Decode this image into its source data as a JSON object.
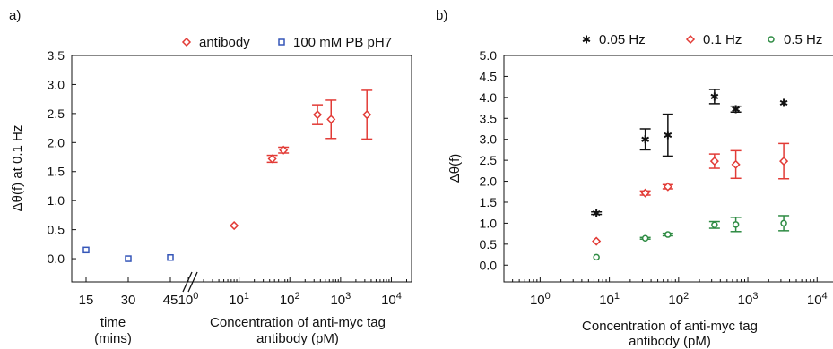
{
  "chart_data": [
    {
      "panel_label": "a)",
      "type": "scatter",
      "ylabel": "Δθ(f) at 0.1 Hz",
      "ylim": [
        -0.4,
        3.5
      ],
      "yticks": [
        "0.0",
        "0.5",
        "1.0",
        "1.5",
        "2.0",
        "2.5",
        "3.0",
        "3.5"
      ],
      "time_axis": {
        "label_line1": "time",
        "label_line2": "(mins)",
        "ticks": [
          "15",
          "30",
          "45"
        ]
      },
      "conc_axis": {
        "label_line1": "Concentration of anti-myc tag",
        "label_line2": "antibody (pM)",
        "scale": "log",
        "xlim": [
          1,
          25000
        ],
        "ticks": [
          "10^0",
          "10^1",
          "10^2",
          "10^3",
          "10^4"
        ]
      },
      "legend_position": "top",
      "series": [
        {
          "name": "antibody",
          "marker": "diamond",
          "color": "#e23b36",
          "points": [
            {
              "x": 8,
              "y": 0.57,
              "err": 0.0
            },
            {
              "x": 45,
              "y": 1.72,
              "err": 0.06
            },
            {
              "x": 75,
              "y": 1.87,
              "err": 0.05
            },
            {
              "x": 350,
              "y": 2.48,
              "err": 0.17
            },
            {
              "x": 650,
              "y": 2.4,
              "err": 0.33
            },
            {
              "x": 3300,
              "y": 2.48,
              "err": 0.42
            }
          ]
        },
        {
          "name": "100 mM PB pH7",
          "marker": "square",
          "color": "#3556b8",
          "points": [
            {
              "x": 15,
              "y": 0.15
            },
            {
              "x": 30,
              "y": 0.0
            },
            {
              "x": 45,
              "y": 0.02
            }
          ]
        }
      ]
    },
    {
      "panel_label": "b)",
      "type": "scatter",
      "ylabel": "Δθ(f)",
      "xlabel_line1": "Concentration of anti-myc tag",
      "xlabel_line2": "antibody (pM)",
      "xscale": "log",
      "xlim": [
        0.3,
        25000
      ],
      "ylim": [
        -0.4,
        5.0
      ],
      "xticks": [
        "10^0",
        "10^1",
        "10^2",
        "10^3",
        "10^4"
      ],
      "yticks": [
        "0.0",
        "0.5",
        "1.0",
        "1.5",
        "2.0",
        "2.5",
        "3.0",
        "3.5",
        "4.0",
        "4.5",
        "5.0"
      ],
      "legend_position": "top",
      "series": [
        {
          "name": "0.05 Hz",
          "marker": "asterisk",
          "color": "#111111",
          "points": [
            {
              "x": 6.5,
              "y": 1.24,
              "err": 0.03
            },
            {
              "x": 33,
              "y": 3.0,
              "err": 0.25
            },
            {
              "x": 70,
              "y": 3.1,
              "err": 0.5
            },
            {
              "x": 330,
              "y": 4.02,
              "err": 0.17
            },
            {
              "x": 670,
              "y": 3.72,
              "err": 0.07
            },
            {
              "x": 3300,
              "y": 3.87,
              "err": 0.0
            }
          ]
        },
        {
          "name": "0.1 Hz",
          "marker": "diamond",
          "color": "#e23b36",
          "points": [
            {
              "x": 6.5,
              "y": 0.57,
              "err": 0.0
            },
            {
              "x": 33,
              "y": 1.72,
              "err": 0.05
            },
            {
              "x": 70,
              "y": 1.87,
              "err": 0.05
            },
            {
              "x": 330,
              "y": 2.48,
              "err": 0.17
            },
            {
              "x": 670,
              "y": 2.4,
              "err": 0.33
            },
            {
              "x": 3300,
              "y": 2.48,
              "err": 0.42
            }
          ]
        },
        {
          "name": "0.5 Hz",
          "marker": "circle",
          "color": "#2e8b43",
          "points": [
            {
              "x": 6.5,
              "y": 0.19,
              "err": 0.0
            },
            {
              "x": 33,
              "y": 0.64,
              "err": 0.02
            },
            {
              "x": 70,
              "y": 0.73,
              "err": 0.03
            },
            {
              "x": 330,
              "y": 0.96,
              "err": 0.08
            },
            {
              "x": 670,
              "y": 0.97,
              "err": 0.17
            },
            {
              "x": 3300,
              "y": 1.0,
              "err": 0.18
            }
          ]
        }
      ]
    }
  ]
}
